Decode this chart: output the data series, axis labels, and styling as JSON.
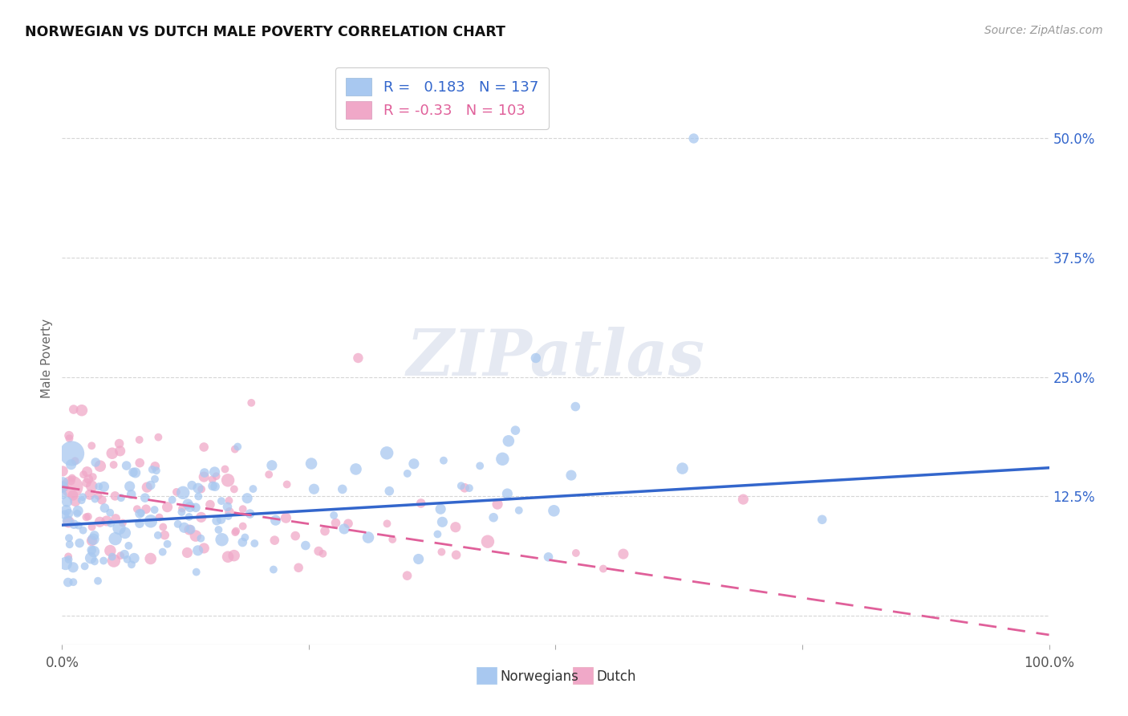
{
  "title": "NORWEGIAN VS DUTCH MALE POVERTY CORRELATION CHART",
  "source": "Source: ZipAtlas.com",
  "ylabel": "Male Poverty",
  "xlim": [
    0.0,
    1.0
  ],
  "ylim": [
    -0.03,
    0.57
  ],
  "norwegian_color": "#a8c8f0",
  "dutch_color": "#f0a8c8",
  "norwegian_line_color": "#3366cc",
  "dutch_line_color": "#e0609a",
  "background_color": "#ffffff",
  "grid_color": "#cccccc",
  "norwegian_R": 0.183,
  "norwegian_N": 137,
  "dutch_R": -0.33,
  "dutch_N": 103,
  "watermark": "ZIPatlas",
  "legend_label_norwegian": "Norwegians",
  "legend_label_dutch": "Dutch",
  "nor_trend_x0": 0.0,
  "nor_trend_x1": 1.0,
  "nor_trend_y0": 0.095,
  "nor_trend_y1": 0.155,
  "dutch_trend_x0": 0.0,
  "dutch_trend_x1": 1.0,
  "dutch_trend_y0": 0.135,
  "dutch_trend_y1": -0.02,
  "ytick_vals": [
    0.0,
    0.125,
    0.25,
    0.375,
    0.5
  ],
  "ytick_labels": [
    "",
    "12.5%",
    "25.0%",
    "37.5%",
    "50.0%"
  ]
}
